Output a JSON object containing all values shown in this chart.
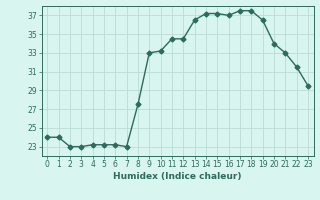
{
  "x": [
    0,
    1,
    2,
    3,
    4,
    5,
    6,
    7,
    8,
    9,
    10,
    11,
    12,
    13,
    14,
    15,
    16,
    17,
    18,
    19,
    20,
    21,
    22,
    23
  ],
  "y": [
    24.0,
    24.0,
    23.0,
    23.0,
    23.2,
    23.2,
    23.2,
    23.0,
    27.5,
    33.0,
    33.2,
    34.5,
    34.5,
    36.5,
    37.2,
    37.2,
    37.0,
    37.5,
    37.5,
    36.5,
    34.0,
    33.0,
    31.5,
    29.5
  ],
  "line_color": "#2d6b5e",
  "marker": "D",
  "markersize": 2.5,
  "linewidth": 1.0,
  "bg_color": "#d8f5f0",
  "grid_color": "#b5d8d0",
  "xlabel": "Humidex (Indice chaleur)",
  "xlim": [
    -0.5,
    23.5
  ],
  "ylim": [
    22,
    38
  ],
  "yticks": [
    23,
    25,
    27,
    29,
    31,
    33,
    35,
    37
  ],
  "xticks": [
    0,
    1,
    2,
    3,
    4,
    5,
    6,
    7,
    8,
    9,
    10,
    11,
    12,
    13,
    14,
    15,
    16,
    17,
    18,
    19,
    20,
    21,
    22,
    23
  ],
  "tick_fontsize": 5.5,
  "label_fontsize": 6.5
}
